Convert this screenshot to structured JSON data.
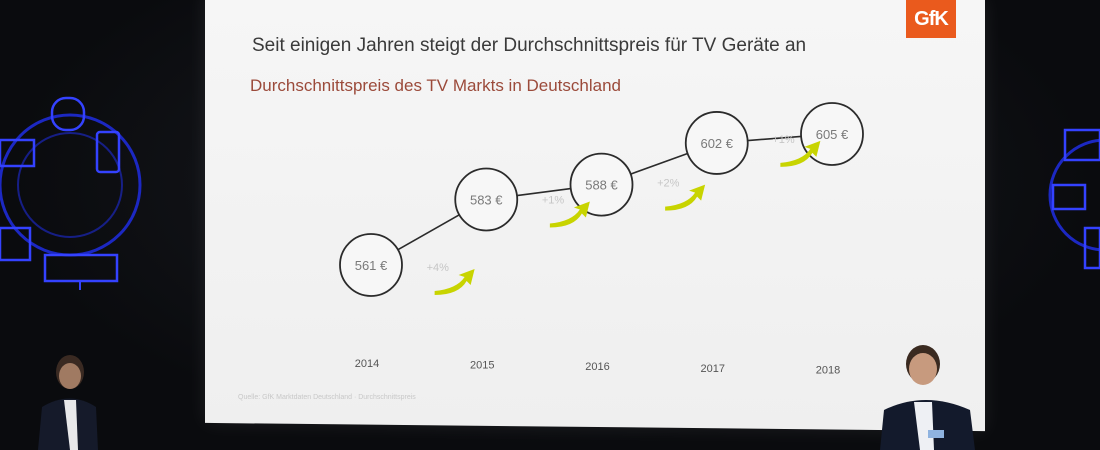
{
  "slide": {
    "title": "Seit einigen Jahren steigt der Durchschnittspreis für TV Geräte an",
    "subtitle": "Durchschnittspreis des TV Markts in Deutschland",
    "logo_text": "GfK",
    "footnote": "Quelle: GfK Marktdaten Deutschland · Durchschnittspreis"
  },
  "chart_data": {
    "type": "line",
    "title": "Durchschnittspreis des TV Markts in Deutschland",
    "x": [
      "2014",
      "2015",
      "2016",
      "2017",
      "2018"
    ],
    "series": [
      {
        "values": [
          561,
          583,
          588,
          602,
          605
        ],
        "labels": [
          "561 €",
          "583 €",
          "588 €",
          "602 €",
          "605 €"
        ]
      }
    ],
    "growth_labels": [
      "+4%",
      "+1%",
      "+2%",
      "+1%"
    ],
    "xlabel": "",
    "ylabel": "",
    "ylim": [
      550,
      610
    ],
    "grid": false,
    "colors": {
      "circle_stroke": "#2b2b2b",
      "line": "#2b2b2b",
      "arrow": "#c8d400",
      "growth_text": "#c6c6c6"
    }
  }
}
